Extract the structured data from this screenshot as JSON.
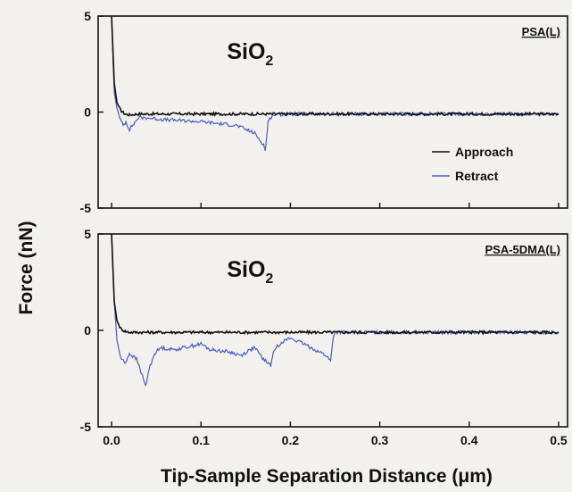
{
  "chart_data": {
    "type": "line",
    "ylabel": "Force (nN)",
    "xlabel": "Tip-Sample Separation Distance (μm)",
    "xlim": [
      -0.015,
      0.51
    ],
    "xticks": [
      "0.0",
      "0.1",
      "0.2",
      "0.3",
      "0.4",
      "0.5"
    ],
    "legend": {
      "placement": "right",
      "entries": [
        "Approach",
        "Retract"
      ]
    },
    "colors": {
      "approach": "#111111",
      "retract": "#4a5fc1"
    },
    "panels": [
      {
        "material": "SiO",
        "material_sub": "2",
        "sample": "PSA(L)",
        "ylim": [
          -5,
          5
        ],
        "yticks": [
          "5",
          "0",
          "-5"
        ],
        "series": [
          {
            "name": "Approach",
            "x": [
              0.0,
              0.003,
              0.006,
              0.01,
              0.015,
              0.02,
              0.03,
              0.05,
              0.1,
              0.2,
              0.3,
              0.4,
              0.5
            ],
            "y": [
              5.0,
              1.5,
              0.5,
              0.1,
              -0.1,
              -0.15,
              -0.1,
              -0.1,
              -0.1,
              -0.1,
              -0.1,
              -0.1,
              -0.1
            ]
          },
          {
            "name": "Retract",
            "x": [
              0.0,
              0.003,
              0.006,
              0.01,
              0.013,
              0.016,
              0.02,
              0.025,
              0.03,
              0.04,
              0.06,
              0.1,
              0.14,
              0.16,
              0.17,
              0.172,
              0.175,
              0.18,
              0.2,
              0.3,
              0.4,
              0.5
            ],
            "y": [
              5.0,
              1.0,
              0.2,
              -0.4,
              -0.7,
              -0.5,
              -0.9,
              -0.6,
              -0.3,
              -0.3,
              -0.4,
              -0.5,
              -0.7,
              -1.1,
              -1.7,
              -2.0,
              -0.5,
              -0.15,
              -0.1,
              -0.1,
              -0.1,
              -0.1
            ]
          }
        ]
      },
      {
        "material": "SiO",
        "material_sub": "2",
        "sample": "PSA-5DMA(L)",
        "ylim": [
          -5,
          5
        ],
        "yticks": [
          "5",
          "0",
          "-5"
        ],
        "series": [
          {
            "name": "Approach",
            "x": [
              0.0,
              0.003,
              0.006,
              0.01,
              0.015,
              0.02,
              0.05,
              0.1,
              0.2,
              0.3,
              0.4,
              0.5
            ],
            "y": [
              5.0,
              1.5,
              0.5,
              0.1,
              -0.05,
              -0.1,
              -0.1,
              -0.1,
              -0.1,
              -0.1,
              -0.1,
              -0.1
            ]
          },
          {
            "name": "Retract",
            "x": [
              0.0,
              0.003,
              0.006,
              0.01,
              0.015,
              0.02,
              0.028,
              0.032,
              0.038,
              0.042,
              0.048,
              0.055,
              0.07,
              0.09,
              0.1,
              0.11,
              0.13,
              0.145,
              0.155,
              0.16,
              0.17,
              0.178,
              0.182,
              0.19,
              0.2,
              0.215,
              0.24,
              0.245,
              0.248,
              0.25,
              0.3,
              0.4,
              0.5
            ],
            "y": [
              5.0,
              1.5,
              -0.5,
              -1.4,
              -1.7,
              -1.2,
              -1.5,
              -2.0,
              -2.9,
              -2.0,
              -1.2,
              -0.9,
              -1.0,
              -0.8,
              -0.7,
              -1.0,
              -1.1,
              -1.3,
              -1.0,
              -0.9,
              -1.5,
              -1.8,
              -1.0,
              -0.6,
              -0.4,
              -0.7,
              -1.3,
              -1.6,
              -0.3,
              -0.1,
              -0.1,
              -0.1,
              -0.1
            ]
          }
        ]
      }
    ]
  }
}
